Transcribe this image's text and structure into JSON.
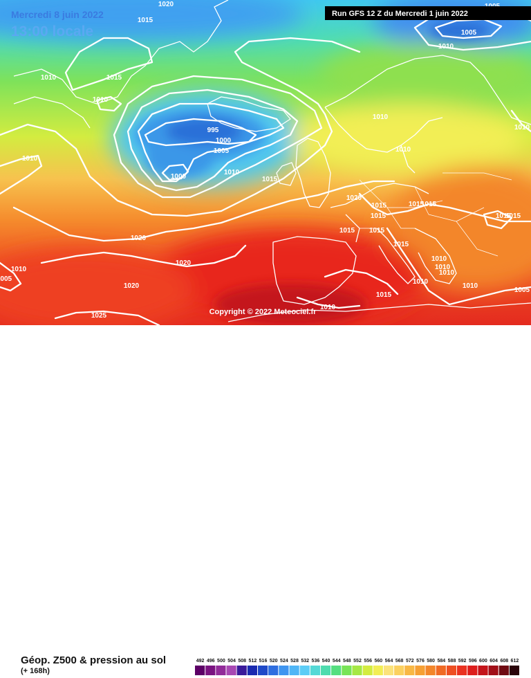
{
  "header": {
    "date_label": "Mercredi 8 juin 2022",
    "time_label": "13:00 locale",
    "run_label": "Run GFS 12 Z du Mercredi 1 juin 2022"
  },
  "copyright": "Copyright © 2022 Meteociel.fr",
  "legend": {
    "title": "Géop. Z500 & pression au sol",
    "subtitle": "(+ 168h)",
    "scale": [
      {
        "v": "492",
        "c": "#5c0066"
      },
      {
        "v": "496",
        "c": "#7a1380"
      },
      {
        "v": "500",
        "c": "#922b99"
      },
      {
        "v": "504",
        "c": "#a848b3"
      },
      {
        "v": "508",
        "c": "#3a1a9a"
      },
      {
        "v": "512",
        "c": "#1a2ab0"
      },
      {
        "v": "516",
        "c": "#1f49c8"
      },
      {
        "v": "520",
        "c": "#2f6ee0"
      },
      {
        "v": "524",
        "c": "#3f95f0"
      },
      {
        "v": "528",
        "c": "#50b6f6"
      },
      {
        "v": "532",
        "c": "#5ccdf6"
      },
      {
        "v": "536",
        "c": "#55d9d6"
      },
      {
        "v": "540",
        "c": "#4edcae"
      },
      {
        "v": "544",
        "c": "#55df80"
      },
      {
        "v": "548",
        "c": "#79e457"
      },
      {
        "v": "552",
        "c": "#a6e844"
      },
      {
        "v": "556",
        "c": "#d3ec40"
      },
      {
        "v": "560",
        "c": "#f2ee55"
      },
      {
        "v": "564",
        "c": "#fbe37b"
      },
      {
        "v": "568",
        "c": "#fbd160"
      },
      {
        "v": "572",
        "c": "#f8b845"
      },
      {
        "v": "576",
        "c": "#f6a034"
      },
      {
        "v": "580",
        "c": "#f3862a"
      },
      {
        "v": "584",
        "c": "#f06a24"
      },
      {
        "v": "588",
        "c": "#ee4f22"
      },
      {
        "v": "592",
        "c": "#ea3220"
      },
      {
        "v": "596",
        "c": "#dd1e1c"
      },
      {
        "v": "600",
        "c": "#c4141a"
      },
      {
        "v": "604",
        "c": "#a10f18"
      },
      {
        "v": "608",
        "c": "#6f0a12"
      },
      {
        "v": "612",
        "c": "#2a040a"
      }
    ]
  },
  "isobar_labels": [
    "1015",
    "1010",
    "1015",
    "1010",
    "1010",
    "995",
    "1000",
    "1005",
    "1000",
    "1010",
    "1015",
    "1010",
    "1020",
    "1020",
    "1020",
    "1020",
    "1025",
    "1010",
    "1010",
    "1005",
    "1010",
    "1010",
    "1015",
    "1020",
    "1015",
    "1015",
    "1015",
    "1015",
    "1010",
    "1010",
    "1010",
    "1015",
    "1010",
    "1010",
    "1015",
    "1015",
    "1005",
    "1005",
    "1010",
    "1015",
    "1015",
    "1005"
  ],
  "colors": {
    "isobar": "#ffffff",
    "land_outline": "#ffffff",
    "banner_bg": "#000000"
  }
}
